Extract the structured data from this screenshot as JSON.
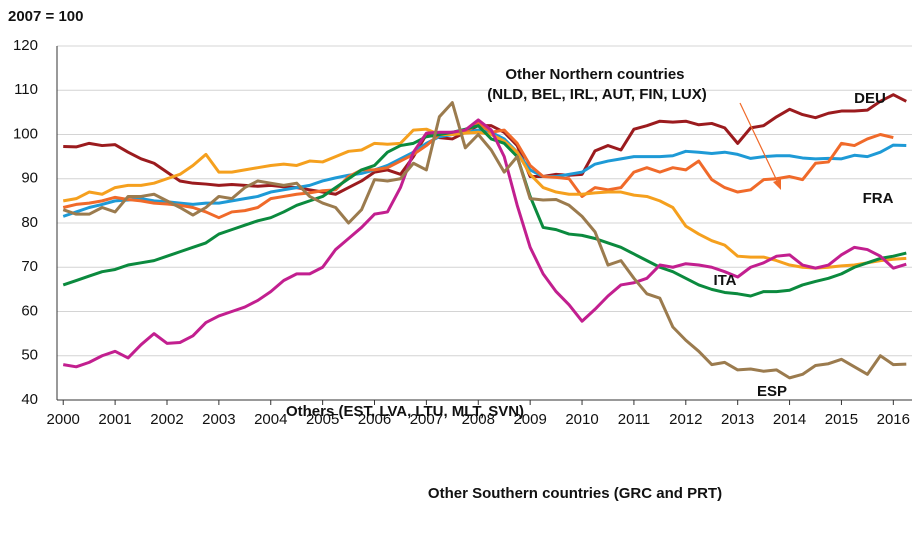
{
  "chart_data": {
    "type": "line",
    "subtitle": "2007 = 100",
    "x": [
      2000,
      2000.25,
      2000.5,
      2000.75,
      2001,
      2001.25,
      2001.5,
      2001.75,
      2002,
      2002.25,
      2002.5,
      2002.75,
      2003,
      2003.25,
      2003.5,
      2003.75,
      2004,
      2004.25,
      2004.5,
      2004.75,
      2005,
      2005.25,
      2005.5,
      2005.75,
      2006,
      2006.25,
      2006.5,
      2006.75,
      2007,
      2007.25,
      2007.5,
      2007.75,
      2008,
      2008.25,
      2008.5,
      2008.75,
      2009,
      2009.25,
      2009.5,
      2009.75,
      2010,
      2010.25,
      2010.5,
      2010.75,
      2011,
      2011.25,
      2011.5,
      2011.75,
      2012,
      2012.25,
      2012.5,
      2012.75,
      2013,
      2013.25,
      2013.5,
      2013.75,
      2014,
      2014.25,
      2014.5,
      2014.75,
      2015,
      2015.25,
      2015.5,
      2015.75,
      2016,
      2016.25
    ],
    "series": [
      {
        "name": "DEU",
        "color": "#9b1b1e",
        "values": [
          97.3,
          97.2,
          98,
          97.5,
          97.7,
          96,
          94.5,
          93.5,
          91.5,
          89.5,
          89,
          88.8,
          88.5,
          88.7,
          88.5,
          88.3,
          88.5,
          88.2,
          88,
          87.5,
          87,
          86.5,
          88,
          89.5,
          91.5,
          92,
          91,
          95,
          100,
          99.3,
          99,
          100.5,
          102,
          102,
          100.5,
          97.5,
          90.5,
          90.5,
          91,
          90.8,
          91,
          96.3,
          97.5,
          96.5,
          101.2,
          102,
          103,
          102.8,
          103,
          102.2,
          102.5,
          101.5,
          98,
          101.5,
          102,
          104,
          105.7,
          104.5,
          103.8,
          104.8,
          105.3,
          105.3,
          105.5,
          107.5,
          109,
          107.5
        ]
      },
      {
        "name": "FRA",
        "color": "#1e9ad6",
        "values": [
          81.5,
          82.5,
          83.5,
          84.2,
          85,
          85.2,
          85.5,
          85,
          84.8,
          84.5,
          84.2,
          84.5,
          84.5,
          85,
          85.5,
          86,
          87,
          87.5,
          88,
          88.5,
          89.5,
          90.2,
          90.8,
          91.2,
          92,
          93,
          94.5,
          96,
          98,
          99.5,
          100,
          100.5,
          101,
          100.5,
          99,
          96,
          92,
          90.5,
          90.5,
          91,
          91.5,
          93.3,
          94,
          94.5,
          95,
          95,
          95,
          95.2,
          96.2,
          96,
          95.7,
          96,
          95.5,
          94.6,
          95,
          95.2,
          95.2,
          94.7,
          94.5,
          94.6,
          94.5,
          95.3,
          95,
          96,
          97.6,
          97.5
        ]
      },
      {
        "name": "Other Northern countries (NLD, BEL, IRL, AUT, FIN, LUX)",
        "color": "#f06a2a",
        "values": [
          83.5,
          84.2,
          84.5,
          85,
          85.8,
          85.3,
          85,
          84.5,
          84.3,
          84,
          83.5,
          82.5,
          81.2,
          82.5,
          82.8,
          83.5,
          85.5,
          86,
          86.5,
          86.8,
          87.3,
          87.5,
          90.5,
          92,
          92,
          92.5,
          94,
          95.5,
          97.5,
          100,
          100.2,
          100.5,
          102.5,
          100.5,
          101,
          98,
          93,
          90.5,
          90.3,
          90,
          86,
          88,
          87.5,
          88,
          91.5,
          92.5,
          91.5,
          92.5,
          92,
          94,
          89.8,
          88,
          87,
          87.5,
          89.8,
          90,
          90.5,
          89.8,
          93.5,
          93.8,
          98,
          97.5,
          99,
          100,
          99.3,
          null
        ]
      },
      {
        "name": "ITA",
        "color": "#f5a01e",
        "values": [
          85,
          85.5,
          87,
          86.5,
          88,
          88.5,
          88.5,
          89,
          90,
          91,
          93,
          95.5,
          91.5,
          91.5,
          92,
          92.5,
          93,
          93.3,
          93,
          94,
          93.8,
          95,
          96.2,
          96.5,
          98,
          97.8,
          98,
          101,
          101.2,
          100,
          100,
          100.3,
          100.5,
          100,
          98.5,
          96,
          91,
          88,
          87,
          86.5,
          86.5,
          86.8,
          87,
          87,
          86.3,
          86,
          85,
          83.5,
          79.3,
          77.5,
          76,
          75,
          72.5,
          72.3,
          72.3,
          71.5,
          70.5,
          70,
          69.8,
          70,
          70.3,
          70.5,
          71,
          71.5,
          71.8,
          72
        ]
      },
      {
        "name": "ESP",
        "color": "#0b8a3e",
        "values": [
          66,
          67,
          68,
          69,
          69.5,
          70.5,
          71,
          71.5,
          72.5,
          73.5,
          74.5,
          75.5,
          77.5,
          78.5,
          79.5,
          80.5,
          81.2,
          82.5,
          84,
          85,
          86,
          88,
          90,
          92,
          93,
          96,
          97.5,
          98,
          99.5,
          100,
          100.5,
          101.2,
          102,
          99,
          98,
          95,
          86,
          79,
          78.5,
          77.5,
          77.2,
          76.5,
          75.5,
          74.5,
          73,
          71.5,
          70,
          69,
          67.5,
          66,
          65,
          64.3,
          64,
          63.5,
          64.5,
          64.5,
          64.8,
          66,
          66.8,
          67.5,
          68.5,
          70,
          71,
          72,
          72.5,
          73.2
        ]
      },
      {
        "name": "Others (EST, LVA, LTU, MLT, SVN)",
        "color": "#c21f8f",
        "values": [
          48,
          47.5,
          48.5,
          50,
          51,
          49.5,
          52.5,
          55,
          52.8,
          53,
          54.5,
          57.5,
          59,
          60,
          61,
          62.5,
          64.5,
          67,
          68.5,
          68.5,
          70,
          74,
          76.5,
          79,
          82,
          82.5,
          88,
          96,
          100.3,
          100.5,
          100.5,
          101,
          103.3,
          101,
          95,
          84,
          74.5,
          68.5,
          64.5,
          61.5,
          57.8,
          60.5,
          63.5,
          66,
          66.5,
          67.5,
          70.5,
          70,
          70.8,
          70.5,
          70,
          69,
          67.8,
          70,
          71,
          72.5,
          72.8,
          70.5,
          69.8,
          70.5,
          72.8,
          74.5,
          74,
          72.5,
          69.8,
          70.7
        ]
      },
      {
        "name": "Other Southern countries (GRC and PRT)",
        "color": "#9b7b4e",
        "values": [
          83,
          82,
          82,
          83.5,
          82.5,
          86,
          86,
          86.5,
          85,
          83.5,
          81.8,
          83.5,
          86,
          85.5,
          88,
          89.5,
          89,
          88.5,
          89,
          86,
          84.5,
          83.5,
          80,
          83,
          89.8,
          89.5,
          90,
          93.5,
          92,
          104,
          107.2,
          97,
          100,
          96.5,
          91.5,
          95,
          85.5,
          85.2,
          85.3,
          84,
          81.5,
          78,
          70.5,
          71.5,
          67.5,
          64,
          63,
          56.5,
          53.5,
          51,
          48,
          48.5,
          46.8,
          47,
          46.5,
          46.8,
          45,
          45.8,
          47.8,
          48.2,
          49.2,
          47.5,
          45.8,
          50,
          48,
          48.1
        ]
      }
    ],
    "xlim": [
      1999.88,
      2016.36
    ],
    "xticks": [
      2000,
      2001,
      2002,
      2003,
      2004,
      2005,
      2006,
      2007,
      2008,
      2009,
      2010,
      2011,
      2012,
      2013,
      2014,
      2015,
      2016
    ],
    "ylim": [
      40,
      120
    ],
    "yticks": [
      40,
      50,
      60,
      70,
      80,
      90,
      100,
      110,
      120
    ],
    "grid": true
  }
}
